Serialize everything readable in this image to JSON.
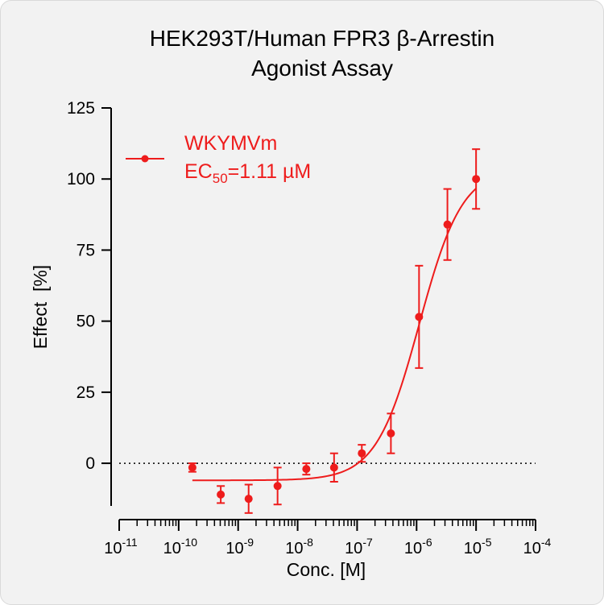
{
  "chart_data": {
    "type": "scatter",
    "title_lines": [
      "HEK293T/Human FPR3 β-Arrestin",
      "Agonist Assay"
    ],
    "xlabel": "Conc. [M]",
    "ylabel": "Effect  [%]",
    "x_scale": "log",
    "x_ticks": [
      {
        "base": "10",
        "exp": "-11"
      },
      {
        "base": "10",
        "exp": "-10"
      },
      {
        "base": "10",
        "exp": "-9"
      },
      {
        "base": "10",
        "exp": "-8"
      },
      {
        "base": "10",
        "exp": "-7"
      },
      {
        "base": "10",
        "exp": "-6"
      },
      {
        "base": "10",
        "exp": "-5"
      },
      {
        "base": "10",
        "exp": "-4"
      }
    ],
    "xlim_exp": [
      -11,
      -4
    ],
    "ylim": [
      -15,
      125
    ],
    "y_ticks": [
      "0",
      "25",
      "50",
      "75",
      "100",
      "125"
    ],
    "reference_line_y": 0,
    "series": [
      {
        "name": "WKYMVm",
        "color": "#ee1c1c",
        "points": [
          {
            "x": 1.7e-10,
            "y": -1.5,
            "err": 1.5
          },
          {
            "x": 5.1e-10,
            "y": -11.0,
            "err": 3.0
          },
          {
            "x": 1.5e-09,
            "y": -12.5,
            "err": 5.0
          },
          {
            "x": 4.6e-09,
            "y": -8.0,
            "err": 6.5
          },
          {
            "x": 1.4e-08,
            "y": -2.0,
            "err": 2.0
          },
          {
            "x": 4.1e-08,
            "y": -1.5,
            "err": 5.0
          },
          {
            "x": 1.2e-07,
            "y": 3.5,
            "err": 3.0
          },
          {
            "x": 3.7e-07,
            "y": 10.5,
            "err": 7.0
          },
          {
            "x": 1.1e-06,
            "y": 51.5,
            "err": 18.0
          },
          {
            "x": 3.3e-06,
            "y": 84.0,
            "err": 12.5
          },
          {
            "x": 1e-05,
            "y": 100.0,
            "err": 10.5
          }
        ],
        "fit": {
          "bottom": -6,
          "top": 104,
          "ec50": 1.11e-06,
          "hill": 1.2
        }
      }
    ],
    "legend": {
      "label": "WKYMVm",
      "ec50_prefix": "EC",
      "ec50_sub": "50",
      "ec50_value": "=1.11 µM",
      "position": "top-left"
    }
  }
}
